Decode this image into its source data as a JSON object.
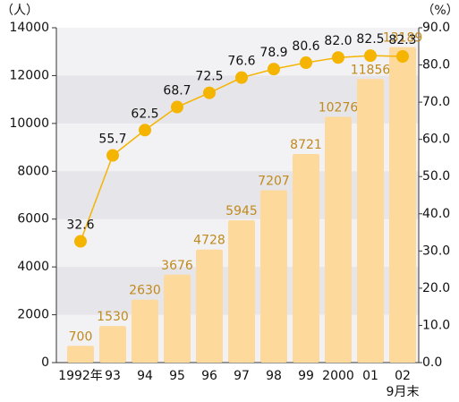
{
  "chart_data": {
    "type": "bar_line",
    "left_unit": "（人）",
    "right_unit": "（%）",
    "categories": [
      "1992年",
      "93",
      "94",
      "95",
      "96",
      "97",
      "98",
      "99",
      "2000",
      "01",
      "02"
    ],
    "x_note": "9月末",
    "series": [
      {
        "type": "bar",
        "color": "#fed99c",
        "label_color": "#c08a1c",
        "values": [
          700,
          1530,
          2630,
          3676,
          4728,
          5945,
          7207,
          8721,
          10276,
          11856,
          13189
        ]
      },
      {
        "type": "line",
        "axis": "y2",
        "color": "#f5b400",
        "values": [
          32.6,
          55.7,
          62.5,
          68.7,
          72.5,
          76.6,
          78.9,
          80.6,
          82.0,
          82.5,
          82.3
        ],
        "value_labels": [
          "32.6",
          "55.7",
          "62.5",
          "68.7",
          "72.5",
          "76.6",
          "78.9",
          "80.6",
          "82.0",
          "82.5",
          "82.3"
        ]
      }
    ],
    "ylim": [
      0,
      14000
    ],
    "yticks": [
      0,
      2000,
      4000,
      6000,
      8000,
      10000,
      12000,
      14000
    ],
    "y2lim": [
      0,
      90
    ],
    "y2ticks": [
      {
        "value": 0,
        "label": "0.0"
      },
      {
        "value": 10,
        "label": "10.0"
      },
      {
        "value": 20,
        "label": "20.0"
      },
      {
        "value": 30,
        "label": "30.0"
      },
      {
        "value": 40,
        "label": "40.0"
      },
      {
        "value": 50,
        "label": "50.0"
      },
      {
        "value": 60,
        "label": "60.0"
      },
      {
        "value": 70,
        "label": "70.0"
      },
      {
        "value": 80,
        "label": "80.0"
      },
      {
        "value": 90,
        "label": "90.0"
      }
    ]
  }
}
